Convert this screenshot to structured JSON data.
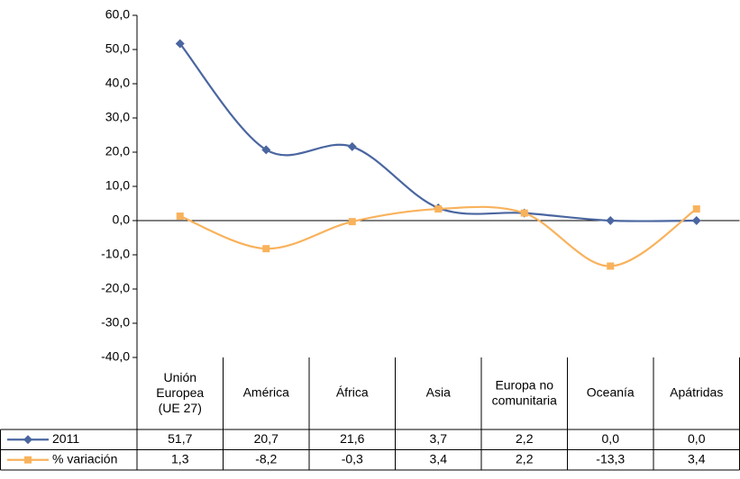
{
  "chart_data": {
    "type": "line",
    "categories": [
      "Unión\nEuropea\n(UE 27)",
      "América",
      "África",
      "Asia",
      "Europa no\ncomunitaria",
      "Oceanía",
      "Apátridas"
    ],
    "series": [
      {
        "name": "2011",
        "color": "#4a66a0",
        "marker": "diamond",
        "values": [
          51.7,
          20.7,
          21.6,
          3.7,
          2.2,
          0.0,
          0.0
        ],
        "value_labels": [
          "51,7",
          "20,7",
          "21,6",
          "3,7",
          "2,2",
          "0,0",
          "0,0"
        ]
      },
      {
        "name": "% variación",
        "color": "#f9b25c",
        "marker": "square",
        "values": [
          1.3,
          -8.2,
          -0.3,
          3.4,
          2.2,
          -13.3,
          3.4
        ],
        "value_labels": [
          "1,3",
          "-8,2",
          "-0,3",
          "3,4",
          "2,2",
          "-13,3",
          "3,4"
        ]
      }
    ],
    "ylim": [
      -40,
      60
    ],
    "yticks": [
      {
        "value": -40,
        "label": "-40,0"
      },
      {
        "value": -30,
        "label": "-30,0"
      },
      {
        "value": -20,
        "label": "-20,0"
      },
      {
        "value": -10,
        "label": "-10,0"
      },
      {
        "value": 0,
        "label": "0,0"
      },
      {
        "value": 10,
        "label": "10,0"
      },
      {
        "value": 20,
        "label": "20,0"
      },
      {
        "value": 30,
        "label": "30,0"
      },
      {
        "value": 40,
        "label": "40,0"
      },
      {
        "value": 50,
        "label": "50,0"
      },
      {
        "value": 60,
        "label": "60,0"
      }
    ],
    "smooth": true,
    "data_table": true
  }
}
